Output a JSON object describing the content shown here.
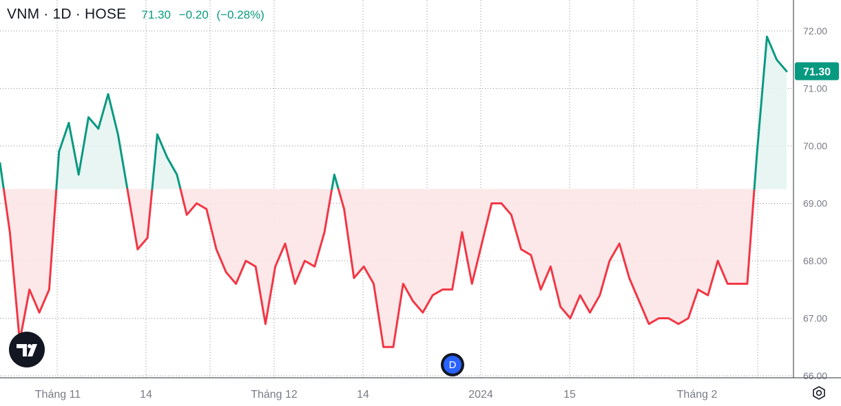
{
  "header": {
    "symbol": "VNM · 1D · HOSE",
    "price": "71.30",
    "change": "−0.20",
    "change_pct": "(−0.28%)"
  },
  "price_label": "71.30",
  "event_marker": "D",
  "colors": {
    "up": "#089981",
    "down": "#f23645",
    "up_fill": "#e6f4f1",
    "down_fill": "#fde5e7",
    "grid": "#2a2e39",
    "axis_text": "#787b86",
    "text": "#131722"
  },
  "icons": [
    "tradingview-logo-icon",
    "dividend-event-icon",
    "settings-icon"
  ],
  "chart_data": {
    "type": "line",
    "baseline": 69.25,
    "ylim": [
      66.0,
      72.0
    ],
    "y_ticks": [
      "66.00",
      "67.00",
      "68.00",
      "69.00",
      "70.00",
      "71.00",
      "72.00"
    ],
    "x_ticks": [
      "Tháng 11",
      "14",
      "Tháng 12",
      "14",
      "2024",
      "15",
      "Tháng 2"
    ],
    "last_value": 71.3,
    "series": [
      {
        "values": [
          69.7,
          68.5,
          66.6,
          67.5,
          67.1,
          67.5,
          69.9,
          70.4,
          69.5,
          70.5,
          70.3,
          70.9,
          70.2,
          69.2,
          68.2,
          68.4,
          70.2,
          69.8,
          69.5,
          68.8,
          69.0,
          68.9,
          68.2,
          67.8,
          67.6,
          68.0,
          67.9,
          66.9,
          67.9,
          68.3,
          67.6,
          68.0,
          67.9,
          68.5,
          69.5,
          68.9,
          67.7,
          67.9,
          67.6,
          66.5,
          66.5,
          67.6,
          67.3,
          67.1,
          67.4,
          67.5,
          67.5,
          68.5,
          67.6,
          68.3,
          69.0,
          69.0,
          68.8,
          68.2,
          68.1,
          67.5,
          67.9,
          67.2,
          67.0,
          67.4,
          67.1,
          67.4,
          68.0,
          68.3,
          67.7,
          67.3,
          66.9,
          67.0,
          67.0,
          66.9,
          67.0,
          67.5,
          67.4,
          68.0,
          67.6,
          67.6,
          67.6,
          69.9,
          71.9,
          71.5,
          71.3
        ]
      }
    ]
  }
}
